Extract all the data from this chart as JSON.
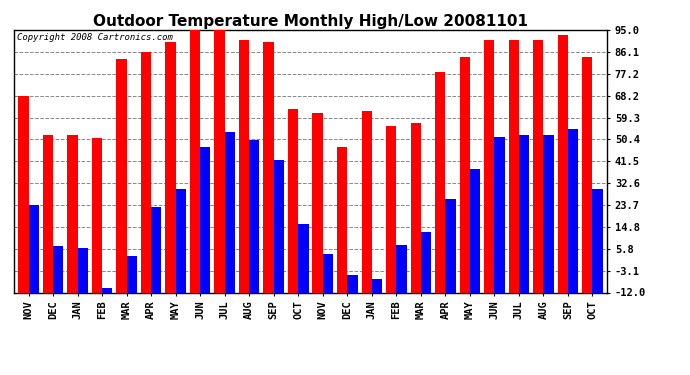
{
  "title": "Outdoor Temperature Monthly High/Low 20081101",
  "copyright": "Copyright 2008 Cartronics.com",
  "months": [
    "NOV",
    "DEC",
    "JAN",
    "FEB",
    "MAR",
    "APR",
    "MAY",
    "JUN",
    "JUL",
    "AUG",
    "SEP",
    "OCT",
    "NOV",
    "DEC",
    "JAN",
    "FEB",
    "MAR",
    "APR",
    "MAY",
    "JUN",
    "JUL",
    "AUG",
    "SEP",
    "OCT"
  ],
  "highs": [
    68.2,
    52.0,
    52.0,
    51.0,
    83.0,
    86.1,
    90.0,
    95.0,
    95.0,
    91.0,
    90.0,
    63.0,
    61.0,
    47.5,
    62.0,
    56.0,
    57.0,
    78.0,
    84.0,
    91.0,
    91.0,
    91.0,
    93.0,
    84.0
  ],
  "lows": [
    23.7,
    7.0,
    6.0,
    -10.0,
    3.0,
    23.0,
    30.0,
    47.5,
    53.5,
    50.0,
    42.0,
    16.0,
    3.5,
    -5.0,
    -6.5,
    7.5,
    12.5,
    26.0,
    38.5,
    51.5,
    52.0,
    52.0,
    54.5,
    30.0
  ],
  "yticks": [
    -12.0,
    -3.1,
    5.8,
    14.8,
    23.7,
    32.6,
    41.5,
    50.4,
    59.3,
    68.2,
    77.2,
    86.1,
    95.0
  ],
  "ymin": -12.0,
  "ymax": 95.0,
  "high_color": "#ff0000",
  "low_color": "#0000ff",
  "bg_color": "#ffffff",
  "grid_color": "#888888",
  "title_fontsize": 11,
  "tick_fontsize": 7.5,
  "copyright_fontsize": 6.5
}
